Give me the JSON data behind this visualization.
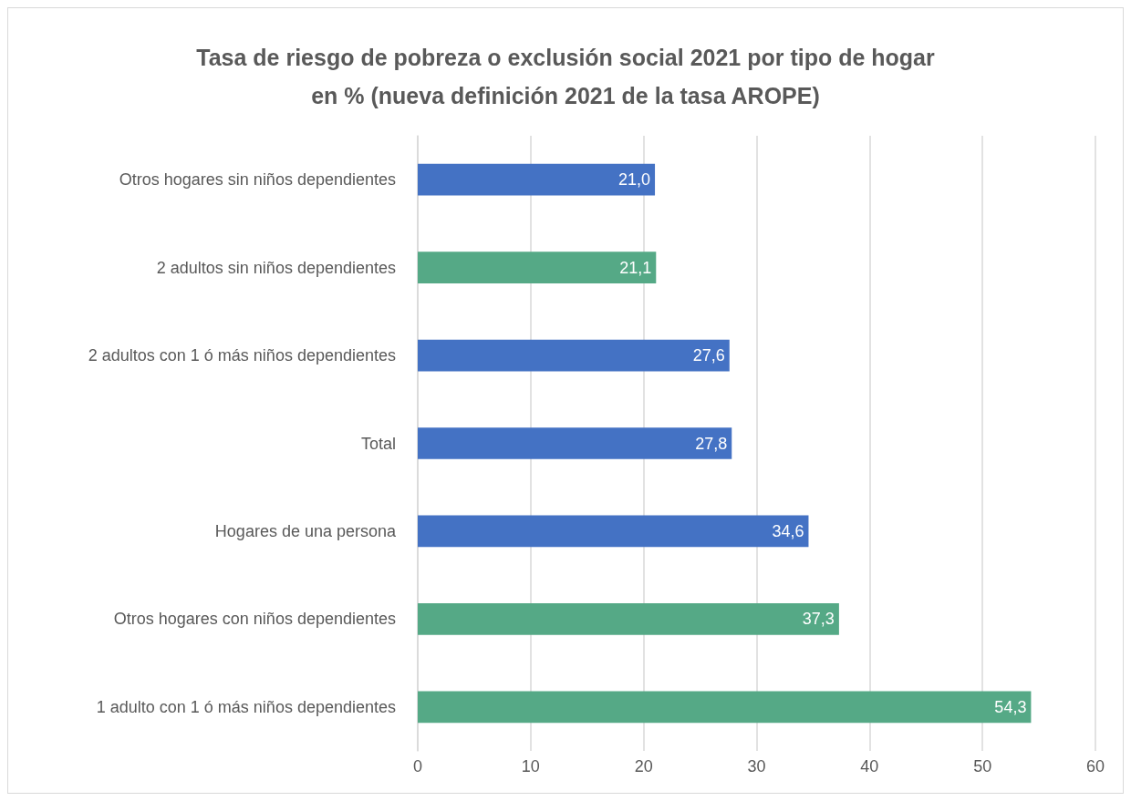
{
  "chart_data": {
    "type": "bar",
    "orientation": "horizontal",
    "title": "Tasa de riesgo de pobreza o exclusión social 2021 por tipo de hogar\nen % (nueva definición 2021 de la tasa AROPE)",
    "categories": [
      "Otros hogares sin niños dependientes",
      "2 adultos sin niños dependientes",
      "2 adultos con 1 ó más niños dependientes",
      "Total",
      "Hogares de una persona",
      "Otros hogares con niños dependientes",
      "1 adulto con 1 ó más niños dependientes"
    ],
    "values": [
      21.0,
      21.1,
      27.6,
      27.8,
      34.6,
      37.3,
      54.3
    ],
    "colors": [
      "#4472c4",
      "#55a986",
      "#4472c4",
      "#4472c4",
      "#4472c4",
      "#55a986",
      "#55a986"
    ],
    "value_labels": [
      "21,0",
      "21,1",
      "27,6",
      "27,8",
      "34,6",
      "37,3",
      "54,3"
    ],
    "xlim": [
      0,
      60
    ],
    "xticks": [
      0,
      10,
      20,
      30,
      40,
      50,
      60
    ],
    "grid": "x"
  }
}
